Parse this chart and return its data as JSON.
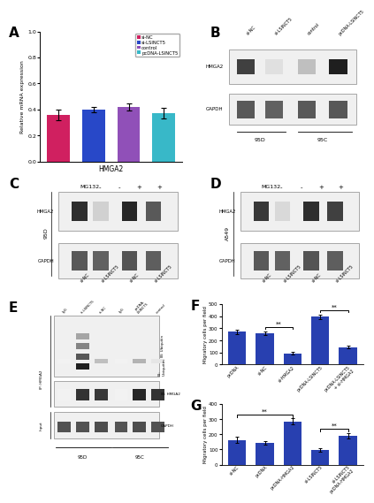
{
  "panel_A": {
    "categories": [
      "si-NC",
      "si-LSINCT5",
      "control",
      "pcDNA-LSINCT5"
    ],
    "values": [
      0.36,
      0.4,
      0.42,
      0.37
    ],
    "errors": [
      0.04,
      0.02,
      0.025,
      0.04
    ],
    "colors": [
      "#d02060",
      "#2848c8",
      "#9050b8",
      "#38b8c8"
    ],
    "ylabel": "Relative mRNA expression",
    "xlabel": "HMGA2",
    "ylim": [
      0,
      1.0
    ],
    "yticks": [
      0.0,
      0.2,
      0.4,
      0.6,
      0.8,
      1.0
    ],
    "legend_labels": [
      "si-NC",
      "si-LSINCT5",
      "control",
      "pcDNA-LSINCT5"
    ],
    "legend_colors": [
      "#d02060",
      "#2848c8",
      "#9050b8",
      "#38b8c8"
    ]
  },
  "panel_F": {
    "categories": [
      "pcDNA",
      "si-NC",
      "si-HMGA2",
      "pcDNA-LSINCT5",
      "pcDNA-LSINCT5\n+ si-HMGA2"
    ],
    "values": [
      270,
      258,
      93,
      395,
      145
    ],
    "errors": [
      18,
      14,
      10,
      18,
      14
    ],
    "color": "#2840b0",
    "ylabel": "Migratory cells per field",
    "ylim": [
      0,
      500
    ],
    "yticks": [
      0,
      100,
      200,
      300,
      400,
      500
    ]
  },
  "panel_G": {
    "categories": [
      "si-NC",
      "pcDNA",
      "pcDNA-HMGA2",
      "si-LSINCT5",
      "si-LSINCT5\npcDNA-HMGA2"
    ],
    "values": [
      162,
      143,
      285,
      96,
      188
    ],
    "errors": [
      20,
      14,
      22,
      11,
      17
    ],
    "color": "#2840b0",
    "ylabel": "Migratory cells per field",
    "ylim": [
      0,
      400
    ],
    "yticks": [
      0,
      100,
      200,
      300,
      400
    ]
  }
}
